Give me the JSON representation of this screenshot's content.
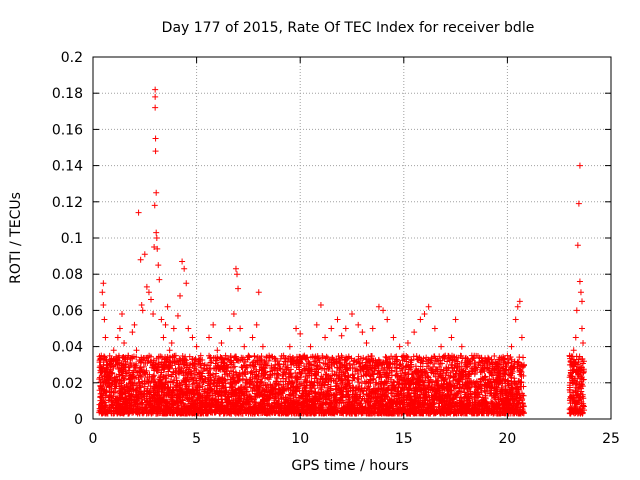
{
  "chart_data": {
    "type": "scatter",
    "title": "Day 177 of 2015, Rate Of TEC Index for receiver bdle",
    "xlabel": "GPS time / hours",
    "ylabel": "ROTI / TECUs",
    "xlim": [
      0,
      25
    ],
    "ylim": [
      0,
      0.2
    ],
    "xticks": [
      0,
      5,
      10,
      15,
      20,
      25
    ],
    "xtick_labels": [
      "0",
      "5",
      "10",
      "15",
      "20",
      "25"
    ],
    "yticks": [
      0,
      0.02,
      0.04,
      0.06,
      0.08,
      0.1,
      0.12,
      0.14,
      0.16,
      0.18,
      0.2
    ],
    "ytick_labels": [
      "0",
      "0.02",
      "0.04",
      "0.06",
      "0.08",
      "0.1",
      "0.12",
      "0.14",
      "0.16",
      "0.18",
      "0.2"
    ],
    "grid": true,
    "marker": "plus",
    "color": "#ff0000",
    "series": [
      {
        "values": [
          [
            0.3,
            0.022
          ],
          [
            0.35,
            0.012
          ],
          [
            0.4,
            0.035
          ],
          [
            0.45,
            0.07
          ],
          [
            0.5,
            0.075
          ],
          [
            0.5,
            0.063
          ],
          [
            0.55,
            0.055
          ],
          [
            0.6,
            0.045
          ],
          [
            0.7,
            0.03
          ],
          [
            0.8,
            0.018
          ],
          [
            0.9,
            0.025
          ],
          [
            1.0,
            0.038
          ],
          [
            1.1,
            0.02
          ],
          [
            1.2,
            0.045
          ],
          [
            1.3,
            0.05
          ],
          [
            1.4,
            0.058
          ],
          [
            1.5,
            0.042
          ],
          [
            1.6,
            0.03
          ],
          [
            1.7,
            0.035
          ],
          [
            1.8,
            0.024
          ],
          [
            1.9,
            0.048
          ],
          [
            2.0,
            0.052
          ],
          [
            2.1,
            0.038
          ],
          [
            2.2,
            0.114
          ],
          [
            2.3,
            0.088
          ],
          [
            2.35,
            0.063
          ],
          [
            2.4,
            0.06
          ],
          [
            2.5,
            0.091
          ],
          [
            2.6,
            0.073
          ],
          [
            2.7,
            0.07
          ],
          [
            2.8,
            0.066
          ],
          [
            2.9,
            0.058
          ],
          [
            2.95,
            0.095
          ],
          [
            2.98,
            0.118
          ],
          [
            3.0,
            0.182
          ],
          [
            3.0,
            0.178
          ],
          [
            3.0,
            0.172
          ],
          [
            3.02,
            0.155
          ],
          [
            3.02,
            0.148
          ],
          [
            3.05,
            0.125
          ],
          [
            3.05,
            0.103
          ],
          [
            3.08,
            0.1
          ],
          [
            3.1,
            0.094
          ],
          [
            3.15,
            0.085
          ],
          [
            3.2,
            0.077
          ],
          [
            3.3,
            0.055
          ],
          [
            3.4,
            0.045
          ],
          [
            3.5,
            0.052
          ],
          [
            3.6,
            0.062
          ],
          [
            3.7,
            0.038
          ],
          [
            3.8,
            0.042
          ],
          [
            3.9,
            0.05
          ],
          [
            4.0,
            0.035
          ],
          [
            4.1,
            0.057
          ],
          [
            4.2,
            0.068
          ],
          [
            4.3,
            0.087
          ],
          [
            4.4,
            0.083
          ],
          [
            4.5,
            0.075
          ],
          [
            4.6,
            0.05
          ],
          [
            4.8,
            0.045
          ],
          [
            5.0,
            0.04
          ],
          [
            5.2,
            0.035
          ],
          [
            5.4,
            0.03
          ],
          [
            5.6,
            0.045
          ],
          [
            5.8,
            0.052
          ],
          [
            6.0,
            0.038
          ],
          [
            6.2,
            0.042
          ],
          [
            6.4,
            0.035
          ],
          [
            6.6,
            0.05
          ],
          [
            6.8,
            0.058
          ],
          [
            6.9,
            0.083
          ],
          [
            6.95,
            0.08
          ],
          [
            7.0,
            0.072
          ],
          [
            7.1,
            0.05
          ],
          [
            7.3,
            0.04
          ],
          [
            7.5,
            0.035
          ],
          [
            7.7,
            0.045
          ],
          [
            7.9,
            0.052
          ],
          [
            8.0,
            0.07
          ],
          [
            8.2,
            0.04
          ],
          [
            8.5,
            0.035
          ],
          [
            8.8,
            0.03
          ],
          [
            9.0,
            0.028
          ],
          [
            9.2,
            0.035
          ],
          [
            9.5,
            0.04
          ],
          [
            9.8,
            0.05
          ],
          [
            10.0,
            0.047
          ],
          [
            10.2,
            0.035
          ],
          [
            10.5,
            0.04
          ],
          [
            10.8,
            0.052
          ],
          [
            11.0,
            0.063
          ],
          [
            11.2,
            0.045
          ],
          [
            11.5,
            0.05
          ],
          [
            11.8,
            0.055
          ],
          [
            12.0,
            0.046
          ],
          [
            12.2,
            0.05
          ],
          [
            12.5,
            0.058
          ],
          [
            12.8,
            0.052
          ],
          [
            13.0,
            0.048
          ],
          [
            13.2,
            0.042
          ],
          [
            13.5,
            0.05
          ],
          [
            13.8,
            0.062
          ],
          [
            14.0,
            0.06
          ],
          [
            14.2,
            0.055
          ],
          [
            14.5,
            0.045
          ],
          [
            14.8,
            0.04
          ],
          [
            15.0,
            0.035
          ],
          [
            15.2,
            0.042
          ],
          [
            15.5,
            0.048
          ],
          [
            15.8,
            0.055
          ],
          [
            16.0,
            0.058
          ],
          [
            16.2,
            0.062
          ],
          [
            16.5,
            0.05
          ],
          [
            16.8,
            0.04
          ],
          [
            17.0,
            0.035
          ],
          [
            17.3,
            0.045
          ],
          [
            17.5,
            0.055
          ],
          [
            17.8,
            0.04
          ],
          [
            18.0,
            0.03
          ],
          [
            18.3,
            0.028
          ],
          [
            18.6,
            0.03
          ],
          [
            19.0,
            0.032
          ],
          [
            19.3,
            0.028
          ],
          [
            19.6,
            0.03
          ],
          [
            20.0,
            0.035
          ],
          [
            20.2,
            0.04
          ],
          [
            20.4,
            0.055
          ],
          [
            20.5,
            0.062
          ],
          [
            20.6,
            0.065
          ],
          [
            20.7,
            0.045
          ],
          [
            20.8,
            0.03
          ],
          [
            23.0,
            0.035
          ],
          [
            23.1,
            0.03
          ],
          [
            23.2,
            0.038
          ],
          [
            23.3,
            0.045
          ],
          [
            23.35,
            0.06
          ],
          [
            23.4,
            0.096
          ],
          [
            23.45,
            0.119
          ],
          [
            23.5,
            0.14
          ],
          [
            23.5,
            0.076
          ],
          [
            23.55,
            0.07
          ],
          [
            23.6,
            0.065
          ],
          [
            23.6,
            0.05
          ],
          [
            23.65,
            0.042
          ]
        ]
      }
    ],
    "dense_band": {
      "segments": [
        [
          0.3,
          20.8
        ],
        [
          23.0,
          23.7
        ]
      ],
      "ymin": 0.003,
      "ymax": 0.035,
      "description": "dense cloud of points roughly between 0.003 and 0.035 TECU throughout the day, with a data gap between ~20.8 h and ~23.0 h"
    }
  }
}
